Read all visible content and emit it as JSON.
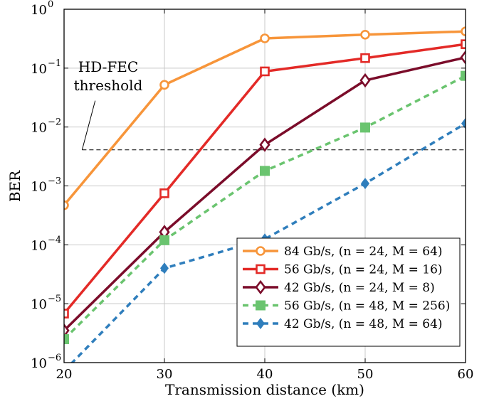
{
  "chart_data": {
    "type": "line",
    "xlabel": "Transmission distance (km)",
    "ylabel": "BER",
    "x": [
      20,
      30,
      40,
      50,
      60
    ],
    "xlim": [
      20,
      60
    ],
    "ylim": [
      1e-06,
      1
    ],
    "yscale": "log",
    "grid": true,
    "xticks": [
      "20",
      "30",
      "40",
      "50",
      "60"
    ],
    "yticks": [
      {
        "base": "10",
        "exp": "0"
      },
      {
        "base": "10",
        "exp": "−1"
      },
      {
        "base": "10",
        "exp": "−2"
      },
      {
        "base": "10",
        "exp": "−3"
      },
      {
        "base": "10",
        "exp": "−4"
      },
      {
        "base": "10",
        "exp": "−5"
      },
      {
        "base": "10",
        "exp": "−6"
      }
    ],
    "threshold": {
      "value": 0.0041,
      "label_line1": "HD-FEC",
      "label_line2": "threshold"
    },
    "legend_position": "bottom-right",
    "series": [
      {
        "name": "84 Gb/s, (n = 24, M = 64)",
        "color": "#f7953a",
        "marker": "circle-open",
        "dash": "solid",
        "values": [
          0.00047,
          0.052,
          0.32,
          0.37,
          0.42
        ]
      },
      {
        "name": "56 Gb/s, (n = 24, M = 16)",
        "color": "#e32a27",
        "marker": "square-open",
        "dash": "solid",
        "values": [
          6.8e-06,
          0.00075,
          0.088,
          0.148,
          0.255
        ]
      },
      {
        "name": "42 Gb/s, (n = 24, M = 8)",
        "color": "#7b0c2a",
        "marker": "diamond-open",
        "dash": "solid",
        "values": [
          3.5e-06,
          0.000165,
          0.005,
          0.062,
          0.152
        ]
      },
      {
        "name": "56 Gb/s, (n = 48, M = 256)",
        "color": "#6ac46f",
        "marker": "square-filled",
        "dash": "dashed",
        "values": [
          2.5e-06,
          0.00012,
          0.0018,
          0.0098,
          0.074
        ]
      },
      {
        "name": "42 Gb/s, (n = 48, M = 64)",
        "color": "#2f7ebc",
        "marker": "diamond-filled",
        "dash": "dashed",
        "values": [
          7.2e-07,
          4e-05,
          0.000125,
          0.0011,
          0.0115
        ]
      }
    ]
  }
}
